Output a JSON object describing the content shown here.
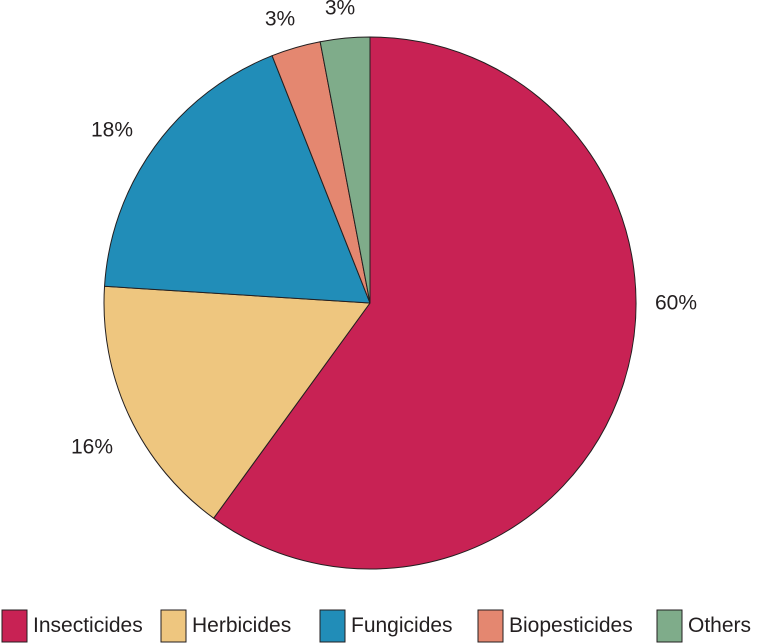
{
  "chart_data": {
    "type": "pie",
    "categories": [
      "Insecticides",
      "Herbicides",
      "Fungicides",
      "Biopesticides",
      "Others"
    ],
    "values": [
      60,
      16,
      18,
      3,
      3
    ],
    "value_labels": [
      "60%",
      "16%",
      "18%",
      "3%",
      "3%"
    ],
    "colors": [
      "#c82254",
      "#eec67f",
      "#218db8",
      "#e48770",
      "#7fac8a"
    ],
    "title": "",
    "legend_position": "bottom",
    "start_angle": "12 o'clock",
    "direction": "clockwise"
  }
}
